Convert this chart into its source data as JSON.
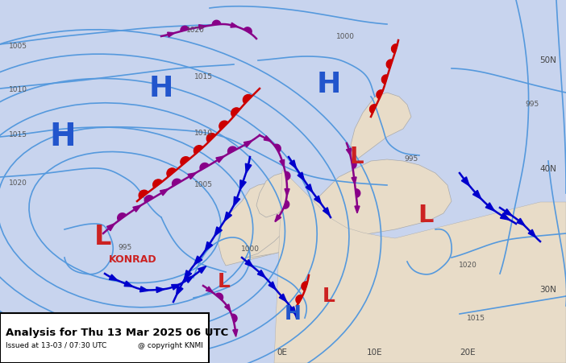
{
  "title_main": "Analysis for Thu 13 Mar 2025 06 UTC",
  "title_sub": "Issued at 13-03 / 07:30 UTC",
  "copyright": "@ copyright KNMI",
  "bg_color": "#d0d8f0",
  "land_color": "#e8dcc8",
  "ocean_color": "#c8d4ee",
  "figsize": [
    7.02,
    4.51
  ],
  "dpi": 100
}
